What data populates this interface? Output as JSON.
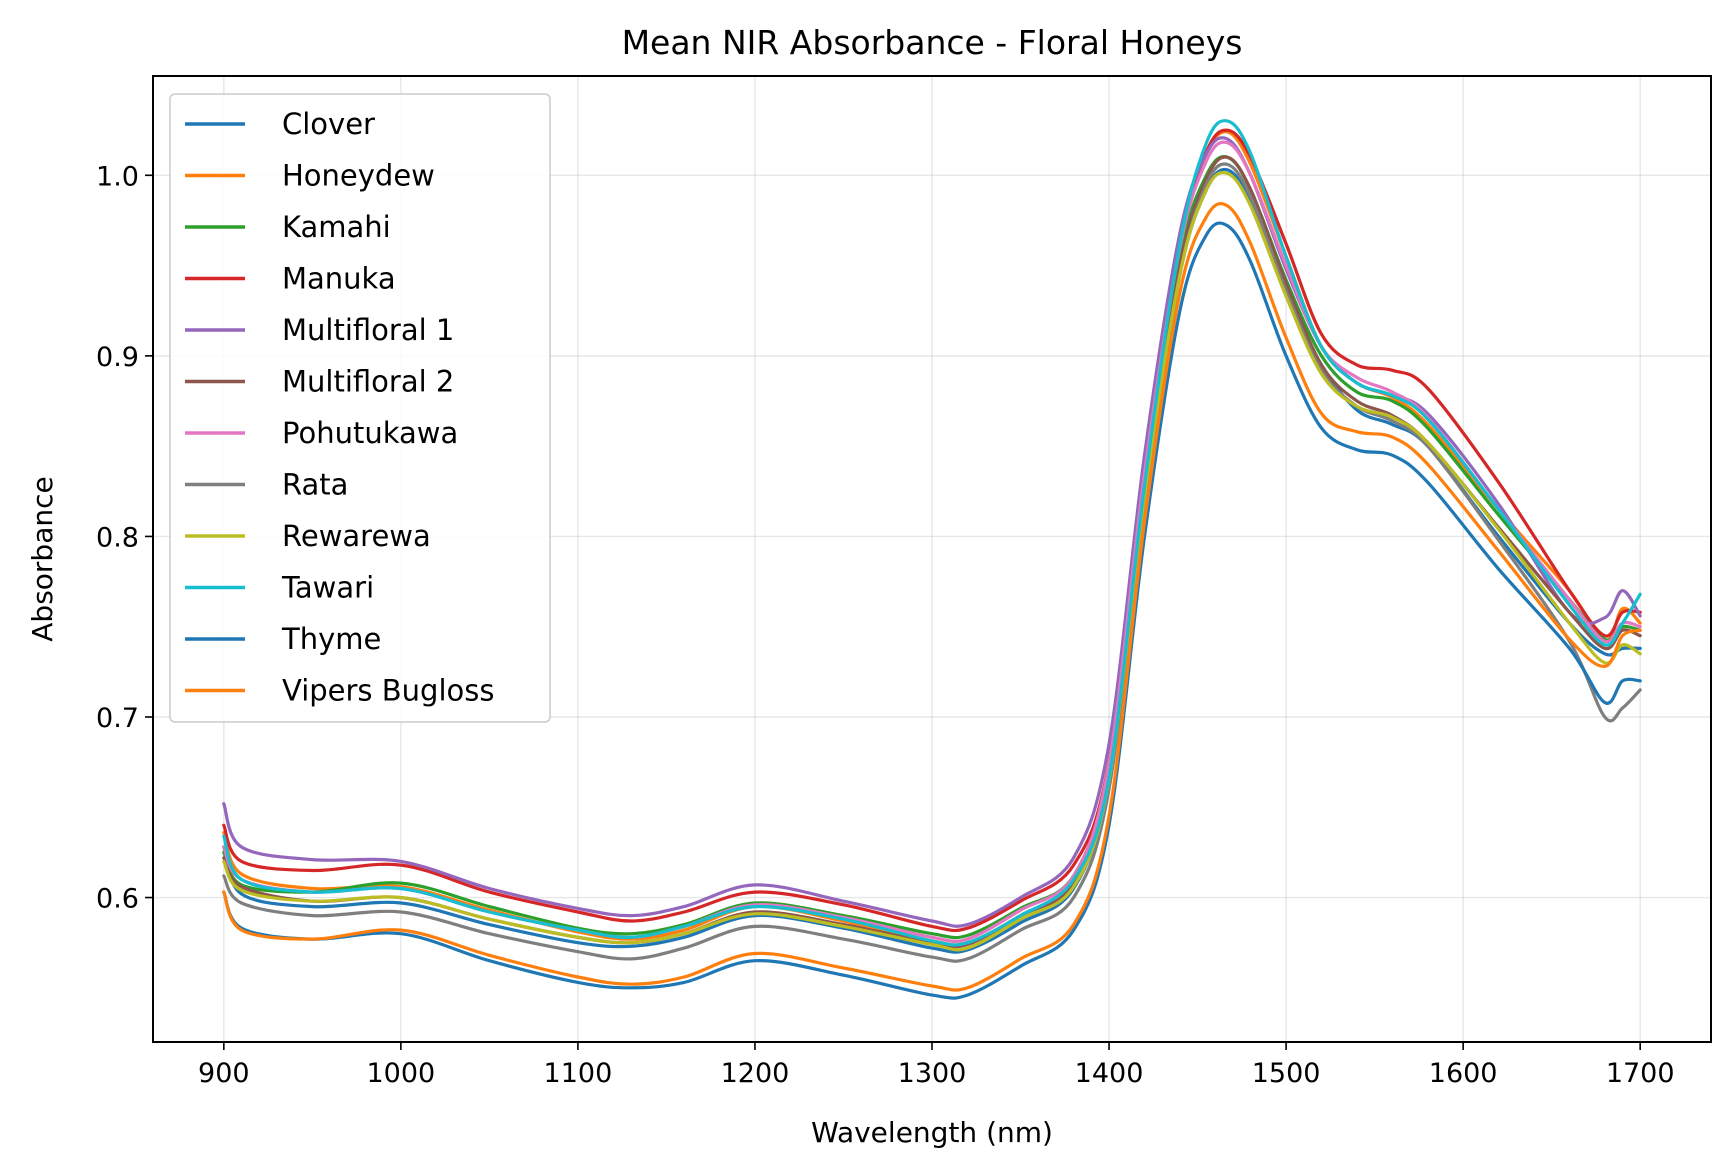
{
  "chart_data": {
    "type": "line",
    "title": "Mean NIR Absorbance - Floral Honeys",
    "xlabel": "Wavelength (nm)",
    "ylabel": "Absorbance",
    "xlim": [
      860,
      1740
    ],
    "ylim": [
      0.52,
      1.055
    ],
    "xticks": [
      900,
      1000,
      1100,
      1200,
      1300,
      1400,
      1500,
      1600,
      1700
    ],
    "yticks": [
      0.6,
      0.7,
      0.8,
      0.9,
      1.0
    ],
    "xtick_labels": [
      "900",
      "1000",
      "1100",
      "1200",
      "1300",
      "1400",
      "1500",
      "1600",
      "1700"
    ],
    "ytick_labels": [
      "0.6",
      "0.7",
      "0.8",
      "0.9",
      "1.0"
    ],
    "grid": true,
    "legend_position": "upper-left",
    "x": [
      900,
      910,
      950,
      1000,
      1050,
      1100,
      1130,
      1160,
      1200,
      1250,
      1300,
      1320,
      1350,
      1380,
      1400,
      1420,
      1440,
      1455,
      1467,
      1480,
      1500,
      1520,
      1540,
      1560,
      1580,
      1620,
      1660,
      1680,
      1690,
      1700
    ],
    "series": [
      {
        "name": "Clover",
        "color": "#1f77b4",
        "values": [
          0.628,
          0.602,
          0.595,
          0.597,
          0.585,
          0.575,
          0.573,
          0.578,
          0.59,
          0.583,
          0.572,
          0.571,
          0.586,
          0.605,
          0.665,
          0.82,
          0.945,
          0.992,
          1.003,
          0.985,
          0.934,
          0.895,
          0.87,
          0.862,
          0.85,
          0.8,
          0.752,
          0.735,
          0.738,
          0.738
        ]
      },
      {
        "name": "Honeydew",
        "color": "#ff7f0e",
        "values": [
          0.636,
          0.613,
          0.605,
          0.606,
          0.593,
          0.581,
          0.577,
          0.582,
          0.595,
          0.587,
          0.576,
          0.575,
          0.59,
          0.61,
          0.672,
          0.835,
          0.965,
          1.012,
          1.024,
          1.006,
          0.955,
          0.905,
          0.885,
          0.877,
          0.862,
          0.815,
          0.77,
          0.742,
          0.76,
          0.752
        ]
      },
      {
        "name": "Kamahi",
        "color": "#2ca02c",
        "values": [
          0.625,
          0.607,
          0.603,
          0.608,
          0.595,
          0.583,
          0.58,
          0.585,
          0.597,
          0.59,
          0.58,
          0.579,
          0.594,
          0.612,
          0.672,
          0.83,
          0.955,
          1.0,
          1.01,
          0.992,
          0.942,
          0.9,
          0.88,
          0.875,
          0.86,
          0.812,
          0.765,
          0.743,
          0.75,
          0.748
        ]
      },
      {
        "name": "Manuka",
        "color": "#d62728",
        "values": [
          0.64,
          0.62,
          0.615,
          0.618,
          0.603,
          0.592,
          0.587,
          0.592,
          0.603,
          0.596,
          0.584,
          0.583,
          0.598,
          0.618,
          0.675,
          0.835,
          0.963,
          1.013,
          1.025,
          1.01,
          0.962,
          0.912,
          0.895,
          0.892,
          0.882,
          0.83,
          0.77,
          0.745,
          0.758,
          0.758
        ]
      },
      {
        "name": "Multifloral 1",
        "color": "#9467bd",
        "values": [
          0.652,
          0.628,
          0.621,
          0.62,
          0.605,
          0.594,
          0.59,
          0.595,
          0.607,
          0.598,
          0.587,
          0.585,
          0.6,
          0.622,
          0.685,
          0.845,
          0.968,
          1.012,
          1.02,
          1.0,
          0.948,
          0.905,
          0.885,
          0.878,
          0.868,
          0.818,
          0.758,
          0.755,
          0.77,
          0.756
        ]
      },
      {
        "name": "Multifloral 2",
        "color": "#8c564b",
        "values": [
          0.622,
          0.606,
          0.598,
          0.6,
          0.588,
          0.578,
          0.575,
          0.58,
          0.592,
          0.585,
          0.575,
          0.574,
          0.59,
          0.608,
          0.668,
          0.826,
          0.95,
          0.998,
          1.01,
          0.992,
          0.94,
          0.895,
          0.875,
          0.867,
          0.852,
          0.805,
          0.758,
          0.738,
          0.748,
          0.745
        ]
      },
      {
        "name": "Pohutukawa",
        "color": "#e377c2",
        "values": [
          0.628,
          0.61,
          0.603,
          0.605,
          0.592,
          0.582,
          0.578,
          0.584,
          0.596,
          0.589,
          0.578,
          0.577,
          0.593,
          0.612,
          0.674,
          0.835,
          0.96,
          1.008,
          1.018,
          1.0,
          0.95,
          0.905,
          0.888,
          0.88,
          0.866,
          0.815,
          0.765,
          0.742,
          0.752,
          0.75
        ]
      },
      {
        "name": "Rata",
        "color": "#7f7f7f",
        "values": [
          0.612,
          0.597,
          0.59,
          0.592,
          0.58,
          0.57,
          0.566,
          0.572,
          0.584,
          0.577,
          0.567,
          0.566,
          0.582,
          0.6,
          0.66,
          0.818,
          0.945,
          0.995,
          1.006,
          0.988,
          0.936,
          0.892,
          0.872,
          0.864,
          0.85,
          0.798,
          0.742,
          0.7,
          0.705,
          0.715
        ]
      },
      {
        "name": "Rewarewa",
        "color": "#bcbd22",
        "values": [
          0.62,
          0.604,
          0.598,
          0.6,
          0.588,
          0.578,
          0.575,
          0.58,
          0.591,
          0.584,
          0.574,
          0.572,
          0.588,
          0.606,
          0.665,
          0.822,
          0.945,
          0.992,
          1.001,
          0.983,
          0.933,
          0.89,
          0.872,
          0.866,
          0.852,
          0.804,
          0.752,
          0.73,
          0.74,
          0.735
        ]
      },
      {
        "name": "Tawari",
        "color": "#17becf",
        "values": [
          0.634,
          0.61,
          0.603,
          0.605,
          0.592,
          0.582,
          0.578,
          0.584,
          0.595,
          0.588,
          0.576,
          0.575,
          0.59,
          0.61,
          0.666,
          0.828,
          0.962,
          1.018,
          1.03,
          1.012,
          0.955,
          0.905,
          0.885,
          0.878,
          0.865,
          0.815,
          0.762,
          0.74,
          0.752,
          0.768
        ]
      },
      {
        "name": "Thyme",
        "color": "#1f77b4",
        "values": [
          0.603,
          0.583,
          0.577,
          0.58,
          0.565,
          0.553,
          0.55,
          0.553,
          0.565,
          0.557,
          0.546,
          0.546,
          0.562,
          0.582,
          0.64,
          0.8,
          0.925,
          0.967,
          0.972,
          0.952,
          0.9,
          0.86,
          0.848,
          0.845,
          0.83,
          0.782,
          0.738,
          0.708,
          0.72,
          0.72
        ]
      },
      {
        "name": "Vipers Bugloss",
        "color": "#ff7f0e",
        "values": [
          0.603,
          0.582,
          0.577,
          0.582,
          0.568,
          0.556,
          0.552,
          0.556,
          0.569,
          0.561,
          0.551,
          0.55,
          0.566,
          0.585,
          0.645,
          0.808,
          0.935,
          0.977,
          0.983,
          0.962,
          0.91,
          0.868,
          0.858,
          0.855,
          0.84,
          0.792,
          0.743,
          0.728,
          0.745,
          0.748
        ]
      }
    ]
  }
}
